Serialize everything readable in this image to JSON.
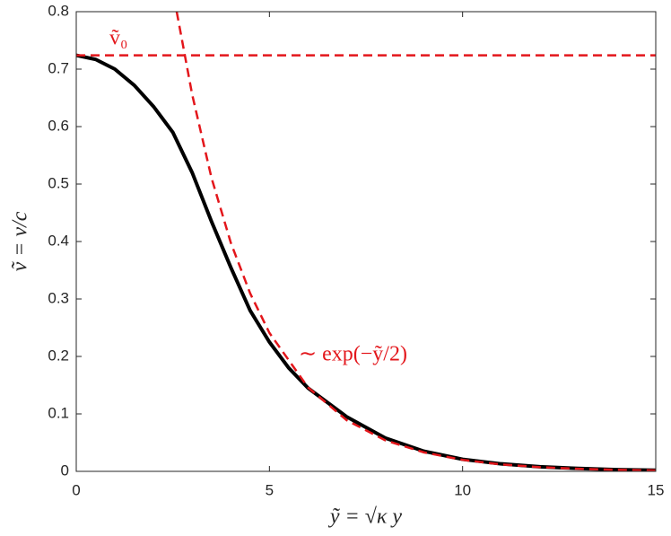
{
  "chart_data": {
    "type": "line",
    "xlabel": "ỹ = √κ y",
    "ylabel": "ṽ = v/c",
    "xlim": [
      0,
      15
    ],
    "ylim": [
      0,
      0.8
    ],
    "xticks": [
      0,
      5,
      10,
      15
    ],
    "yticks": [
      0,
      0.1,
      0.2,
      0.3,
      0.4,
      0.5,
      0.6,
      0.7,
      0.8
    ],
    "series": [
      {
        "color": "#000000",
        "dashed": false,
        "x": [
          0,
          0.5,
          1,
          1.5,
          2,
          2.5,
          3,
          3.5,
          4,
          4.5,
          5,
          5.5,
          6,
          7,
          8,
          9,
          10,
          11,
          12,
          13,
          14,
          15
        ],
        "values": [
          0.724,
          0.717,
          0.7,
          0.672,
          0.635,
          0.59,
          0.52,
          0.435,
          0.355,
          0.28,
          0.225,
          0.18,
          0.145,
          0.095,
          0.058,
          0.035,
          0.021,
          0.013,
          0.008,
          0.005,
          0.003,
          0.002
        ]
      },
      {
        "color": "#e3161b",
        "dashed": true,
        "x": [
          0,
          15
        ],
        "values": [
          0.724,
          0.724
        ]
      },
      {
        "color": "#e3161b",
        "dashed": true,
        "x": [
          2.6,
          3,
          3.5,
          4,
          4.5,
          5,
          6,
          7,
          8,
          9,
          10,
          11,
          12,
          13,
          14,
          15
        ],
        "values": [
          0.8,
          0.656,
          0.511,
          0.398,
          0.31,
          0.241,
          0.146,
          0.089,
          0.054,
          0.033,
          0.02,
          0.012,
          0.0073,
          0.0044,
          0.0027,
          0.0016
        ]
      }
    ],
    "annotations": [
      {
        "text": "ṽ₀",
        "color": "#e3161b"
      },
      {
        "text": "∼ exp(−ỹ/2)",
        "color": "#e3161b"
      }
    ]
  }
}
